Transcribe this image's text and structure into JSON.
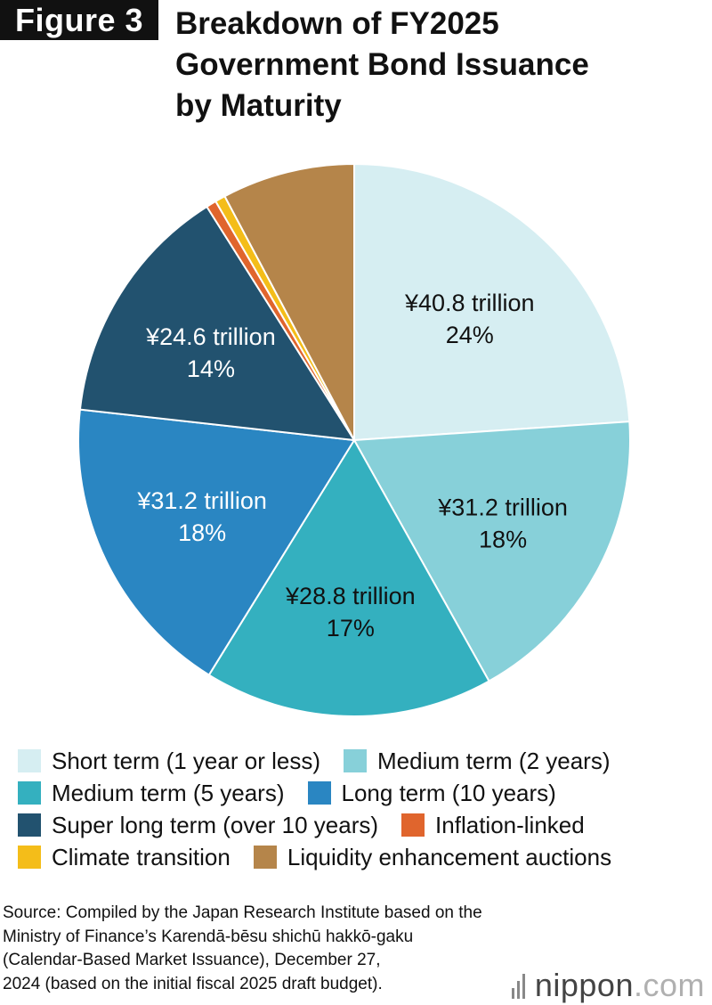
{
  "figure_label": "Figure 3",
  "title": "Breakdown of FY2025\nGovernment Bond Issuance\nby Maturity",
  "source": "Source: Compiled by the Japan Research Institute based on the\nMinistry of Finance’s Karendā-bēsu shichū hakkō-gaku\n(Calendar-Based Market Issuance), December 27,\n2024 (based on the initial fiscal 2025 draft budget).",
  "logo": {
    "name": "nippon",
    "dot": ".",
    "tld": "com"
  },
  "chart_data": {
    "type": "pie",
    "start_angle_deg": 0,
    "direction": "clockwise",
    "legend_position": "bottom",
    "series": [
      {
        "name": "Short term (1 year or less)",
        "value": 24,
        "amount": "¥40.8 trillion",
        "percent": "24%",
        "color": "#d6eef2"
      },
      {
        "name": "Medium term (2 years)",
        "value": 18,
        "amount": "¥31.2 trillion",
        "percent": "18%",
        "color": "#87d0d9"
      },
      {
        "name": "Medium term (5 years)",
        "value": 17,
        "amount": "¥28.8 trillion",
        "percent": "17%",
        "color": "#34b0bf"
      },
      {
        "name": "Long term (10 years)",
        "value": 18,
        "amount": "¥31.2 trillion",
        "percent": "18%",
        "color": "#2a86c2"
      },
      {
        "name": "Super long term (over 10 years)",
        "value": 14.3,
        "amount": "¥24.6 trillion",
        "percent": "14%",
        "color": "#22526f"
      },
      {
        "name": "Inflation-linked",
        "value": 0.6,
        "color": "#e0652d"
      },
      {
        "name": "Climate transition",
        "value": 0.6,
        "color": "#f4bd19"
      },
      {
        "name": "Liquidity enhancement auctions",
        "value": 7.8,
        "color": "#b5854a"
      }
    ]
  }
}
